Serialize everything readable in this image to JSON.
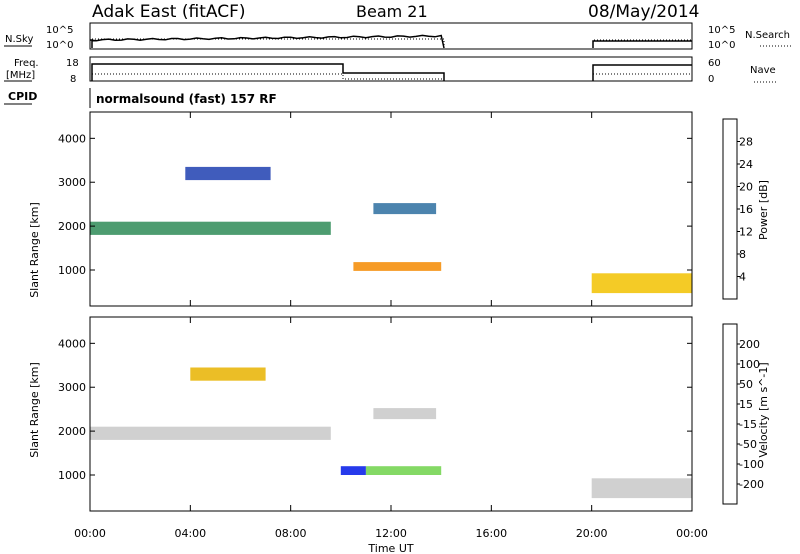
{
  "header": {
    "site_title": "Adak East (fitACF)",
    "beam": "Beam 21",
    "date": "08/May/2014"
  },
  "top_panels": {
    "nsky_label": "N.Sky",
    "nsky_ticks": [
      "10^5",
      "10^0"
    ],
    "nsearch_label": "N.Search",
    "nsearch_ticks": [
      "10^5",
      "10^0"
    ],
    "freq_label": "Freq.",
    "freq_unit": "[MHz]",
    "freq_ticks": [
      "18",
      "8"
    ],
    "nave_label": "Nave",
    "nave_ticks": [
      "60",
      "0"
    ],
    "cpid_label": "CPID",
    "cpid_text": "normalsound (fast) 157 RF"
  },
  "colors": {
    "power_scale": [
      "#0018e8",
      "#1f3fb0",
      "#2d6ea0",
      "#2e8b57",
      "#6cbb3c",
      "#f2c200",
      "#f58a00",
      "#f15a00",
      "#e80000"
    ],
    "velocity_scale": [
      "#0018e8",
      "#2c55b8",
      "#2e8b57",
      "#6fd24a",
      "#c8c8c8",
      "#e8b300",
      "#f28a00",
      "#ee4b00",
      "#e80000"
    ]
  },
  "chart_data": [
    {
      "type": "heatmap",
      "name": "power",
      "ylabel": "Slant Range [km]",
      "yticks": [
        "1000",
        "2000",
        "3000",
        "4000"
      ],
      "ylim": [
        180,
        4600
      ],
      "colorbar_label": "Power [dB]",
      "colorbar_ticks": [
        "4",
        "8",
        "12",
        "16",
        "20",
        "24",
        "28"
      ],
      "colorbar_range": [
        0,
        32
      ],
      "bands": [
        {
          "t_start": 0.0,
          "t_end": 9.6,
          "range_center": 1950,
          "range_width": 300,
          "value_db": 12
        },
        {
          "t_start": 10.5,
          "t_end": 14.0,
          "range_center": 1080,
          "range_width": 200,
          "value_db": 22
        },
        {
          "t_start": 11.3,
          "t_end": 13.8,
          "range_center": 2400,
          "range_width": 250,
          "value_db": 8
        },
        {
          "t_start": 3.8,
          "t_end": 7.2,
          "range_center": 3200,
          "range_width": 300,
          "value_db": 6
        },
        {
          "t_start": 20.0,
          "t_end": 24.0,
          "range_center": 700,
          "range_width": 450,
          "value_db": 18
        }
      ]
    },
    {
      "type": "heatmap",
      "name": "velocity",
      "ylabel": "Slant Range [km]",
      "xlabel": "Time UT",
      "xticks": [
        "00:00",
        "04:00",
        "08:00",
        "12:00",
        "16:00",
        "20:00",
        "00:00"
      ],
      "yticks": [
        "1000",
        "2000",
        "3000",
        "4000"
      ],
      "ylim": [
        180,
        4600
      ],
      "colorbar_label": "Velocity [m s^-1]",
      "colorbar_ticks": [
        "200",
        "100",
        "50",
        "15",
        "-15",
        "-50",
        "-100",
        "-200"
      ],
      "colorbar_range": [
        -250,
        250
      ],
      "bands": [
        {
          "t_start": 0.0,
          "t_end": 9.6,
          "range_center": 1950,
          "range_width": 300,
          "value": -10
        },
        {
          "t_start": 10.0,
          "t_end": 11.0,
          "range_center": 1100,
          "range_width": 200,
          "value": 200
        },
        {
          "t_start": 11.0,
          "t_end": 14.0,
          "range_center": 1100,
          "range_width": 200,
          "value": 40
        },
        {
          "t_start": 11.3,
          "t_end": 13.8,
          "range_center": 2400,
          "range_width": 250,
          "value": 10
        },
        {
          "t_start": 4.0,
          "t_end": 7.0,
          "range_center": 3300,
          "range_width": 300,
          "value": -40
        },
        {
          "t_start": 20.0,
          "t_end": 24.0,
          "range_center": 700,
          "range_width": 450,
          "value": 5
        }
      ]
    }
  ]
}
